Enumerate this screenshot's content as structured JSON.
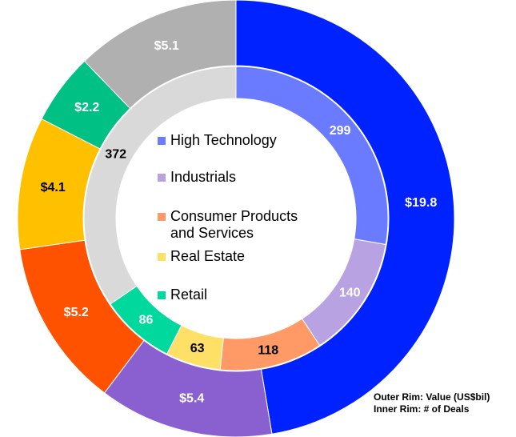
{
  "chart_data": {
    "type": "donut",
    "categories": [
      "High Technology",
      "Industrials",
      "Consumer Products and Services",
      "Real Estate",
      "Retail",
      null
    ],
    "series": [
      {
        "ring": "outer",
        "values": [
          19.8,
          5.4,
          5.2,
          4.1,
          2.2,
          5.1
        ],
        "value_labels": [
          "$19.8",
          "$5.4",
          "$5.2",
          "$4.1",
          "$2.2",
          "$5.1"
        ],
        "colors": [
          "#0022ff",
          "#8a5fd0",
          "#ff5200",
          "#ffc000",
          "#00c084",
          "#b0b0b0"
        ],
        "label_colors": [
          "#ffffff",
          "#ffffff",
          "#ffffff",
          "#000000",
          "#ffffff",
          "#ffffff"
        ]
      },
      {
        "ring": "inner",
        "values": [
          299,
          140,
          118,
          63,
          86,
          372
        ],
        "colors": [
          "#6b7bff",
          "#b9a2e2",
          "#ff9966",
          "#ffe066",
          "#00d89e",
          "#d9d9d9"
        ],
        "label_colors": [
          "#ffffff",
          "#ffffff",
          "#000000",
          "#000000",
          "#ffffff",
          "#000000"
        ]
      }
    ],
    "annotations": [
      "Outer Rim: Value (US$bil)",
      "Inner Rim: # of Deals"
    ]
  }
}
